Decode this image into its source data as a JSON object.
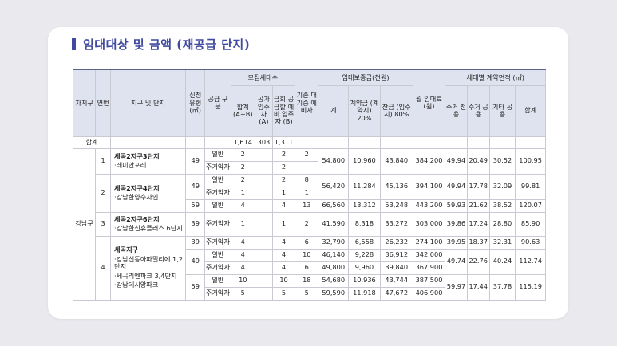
{
  "title": "임대대상 및 금액 (재공급 단지)",
  "headers": {
    "district": "자치구",
    "no": "연번",
    "complex": "지구 및 단지",
    "type": "신청 유형 (㎡)",
    "supply": "공급 구분",
    "recruit_group": "모집세대수",
    "total": "합계 (A+B)",
    "vacant": "공가 입주자 (A)",
    "reserve": "금회 공급할 예비 입주자 (B)",
    "existing": "기존 대기중 예비자",
    "deposit_group": "임대보증금(천원)",
    "deposit_total": "계",
    "contract": "계약금 (계약시) 20%",
    "balance": "잔금 (입주시) 80%",
    "monthly": "월 임대료 (원)",
    "area_group": "세대별 계약면적 (㎡)",
    "exclusive": "주거 전용",
    "common": "주거 공용",
    "other": "기타 공용",
    "area_total": "합계"
  },
  "sum_row": {
    "label": "합계",
    "total": "1,614",
    "vacant": "303",
    "reserve": "1,311"
  },
  "district_name": "강남구",
  "rows": [
    {
      "no": "1",
      "name": "세곡2지구3단지",
      "sub": "·레미안포레",
      "type": "49",
      "supply": "일반",
      "total": "2",
      "vacant": "",
      "reserve": "2",
      "existing": "2",
      "deposit": "54,800",
      "contract": "10,960",
      "balance": "43,840",
      "monthly": "384,200",
      "exclusive": "49.94",
      "common": "20.49",
      "other": "30.52",
      "area_total": "100.95"
    },
    {
      "supply": "주거약자",
      "total": "2",
      "vacant": "",
      "reserve": "2",
      "existing": ""
    },
    {
      "no": "2",
      "name": "세곡2지구4단지",
      "sub": "·강남한양수자인",
      "type": "49",
      "supply": "일반",
      "total": "2",
      "vacant": "",
      "reserve": "2",
      "existing": "8",
      "deposit": "56,420",
      "contract": "11,284",
      "balance": "45,136",
      "monthly": "394,100",
      "exclusive": "49.94",
      "common": "17.78",
      "other": "32.09",
      "area_total": "99.81"
    },
    {
      "supply": "주거약자",
      "total": "1",
      "vacant": "",
      "reserve": "1",
      "existing": "1"
    },
    {
      "type": "59",
      "supply": "일반",
      "total": "4",
      "vacant": "",
      "reserve": "4",
      "existing": "13",
      "deposit": "66,560",
      "contract": "13,312",
      "balance": "53,248",
      "monthly": "443,200",
      "exclusive": "59.93",
      "common": "21.62",
      "other": "38.52",
      "area_total": "120.07"
    },
    {
      "no": "3",
      "name": "세곡2지구6단지",
      "sub": "·강남한신휴플러스 6단지",
      "type": "39",
      "supply": "주거약자",
      "total": "1",
      "vacant": "",
      "reserve": "1",
      "existing": "2",
      "deposit": "41,590",
      "contract": "8,318",
      "balance": "33,272",
      "monthly": "303,000",
      "exclusive": "39.86",
      "common": "17.24",
      "other": "28.80",
      "area_total": "85.90"
    },
    {
      "no": "4",
      "name": "세곡지구",
      "sub1": "·강남신동아파밀리에 1,2단지",
      "sub2": "·세곡리엔파크 3,4단지",
      "sub3": "·강남데시앙파크",
      "type": "39",
      "supply": "주거약자",
      "total": "4",
      "vacant": "",
      "reserve": "4",
      "existing": "6",
      "deposit": "32,790",
      "contract": "6,558",
      "balance": "26,232",
      "monthly": "274,100",
      "exclusive": "39.95",
      "common": "18.37",
      "other": "32.31",
      "area_total": "90.63"
    },
    {
      "type": "49",
      "supply": "일반",
      "total": "4",
      "vacant": "",
      "reserve": "4",
      "existing": "10",
      "deposit": "46,140",
      "contract": "9,228",
      "balance": "36,912",
      "monthly": "342,000",
      "exclusive": "49.74",
      "common": "22.76",
      "other": "40.24",
      "area_total": "112.74"
    },
    {
      "supply": "주거약자",
      "total": "4",
      "vacant": "",
      "reserve": "4",
      "existing": "6",
      "deposit": "49,800",
      "contract": "9,960",
      "balance": "39,840",
      "monthly": "367,900"
    },
    {
      "type": "59",
      "supply": "일반",
      "total": "10",
      "vacant": "",
      "reserve": "10",
      "existing": "18",
      "deposit": "54,680",
      "contract": "10,936",
      "balance": "43,744",
      "monthly": "387,500",
      "exclusive": "59.97",
      "common": "17.44",
      "other": "37.78",
      "area_total": "115.19"
    },
    {
      "supply": "주거약자",
      "total": "5",
      "vacant": "",
      "reserve": "5",
      "existing": "5",
      "deposit": "59,590",
      "contract": "11,918",
      "balance": "47,672",
      "monthly": "406,900"
    }
  ]
}
